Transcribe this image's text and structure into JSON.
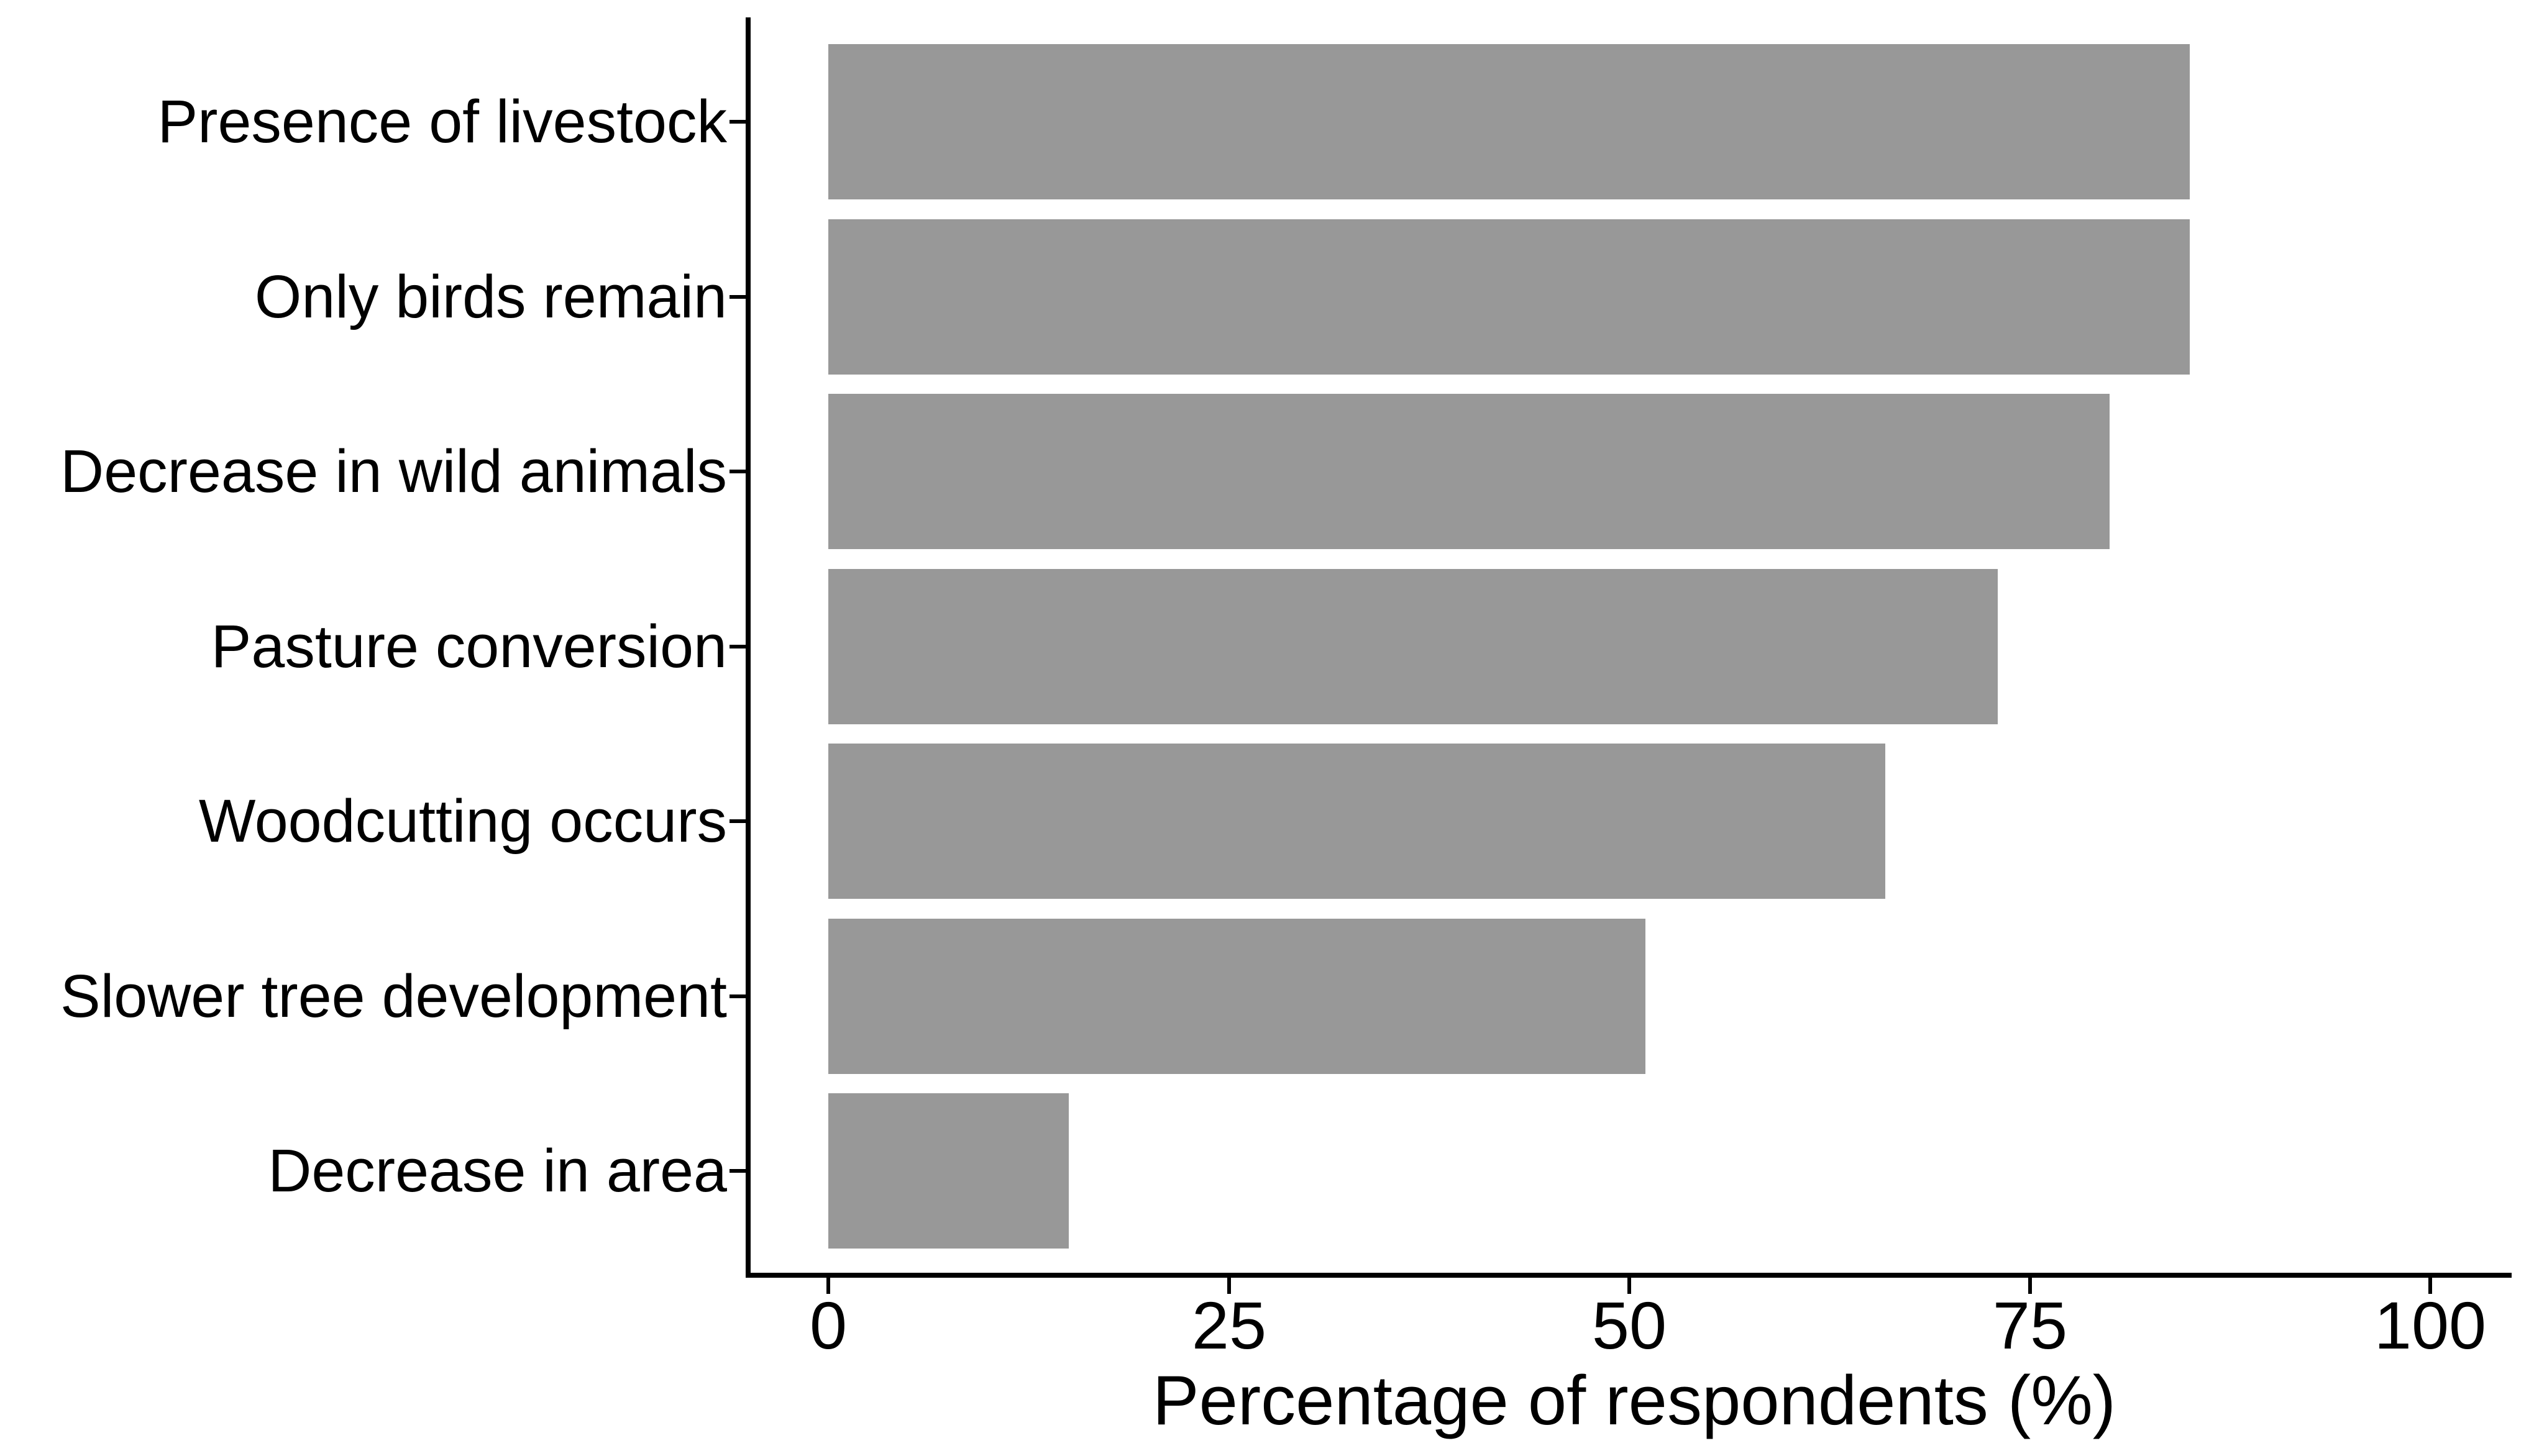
{
  "figure": {
    "background": "#ffffff",
    "bar_color": "#989898",
    "axis_color": "#000000",
    "text_color": "#000000"
  },
  "chart_data": {
    "type": "bar",
    "orientation": "horizontal",
    "title": "",
    "xlabel": "Percentage of respondents (%)",
    "ylabel": "",
    "categories": [
      "Presence of livestock",
      "Only birds remain",
      "Decrease in wild animals",
      "Pasture conversion",
      "Woodcutting occurs",
      "Slower tree development",
      "Decrease in area"
    ],
    "values": [
      85,
      85,
      80,
      73,
      66,
      51,
      15
    ],
    "xlim": [
      0,
      100
    ],
    "x_ticks": [
      0,
      25,
      50,
      75,
      100
    ],
    "grid": false,
    "legend": false
  }
}
